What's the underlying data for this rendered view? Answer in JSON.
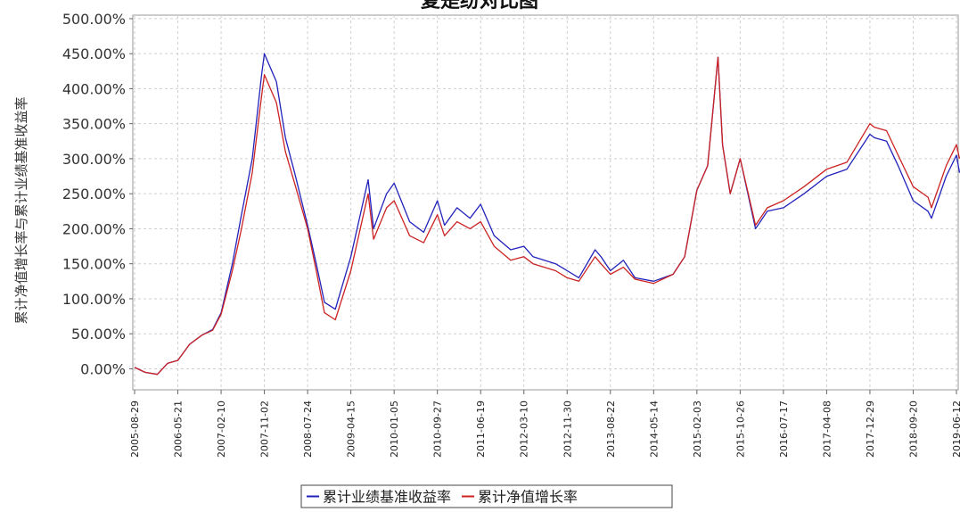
{
  "chart_data": {
    "type": "line",
    "title": "复是纷对比图",
    "xlabel": "",
    "ylabel": "累计净值增长率与累计业绩基准收益率",
    "ylim": [
      -30,
      505
    ],
    "y_ticks": [
      0,
      50,
      100,
      150,
      200,
      250,
      300,
      350,
      400,
      450,
      500
    ],
    "y_tick_labels": [
      "0.00%",
      "50.00%",
      "100.00%",
      "150.00%",
      "200.00%",
      "250.00%",
      "300.00%",
      "350.00%",
      "400.00%",
      "450.00%",
      "500.00%"
    ],
    "x_tick_labels": [
      "2005-08-29",
      "2006-05-21",
      "2007-02-10",
      "2007-11-02",
      "2008-07-24",
      "2009-04-15",
      "2010-01-05",
      "2010-09-27",
      "2011-06-19",
      "2012-03-10",
      "2012-11-30",
      "2013-08-22",
      "2014-05-14",
      "2015-02-03",
      "2015-10-26",
      "2016-07-17",
      "2017-04-08",
      "2017-12-29",
      "2018-09-20",
      "2019-06-12"
    ],
    "grid": true,
    "legend_position": "bottom-center",
    "series": [
      {
        "name": "累计业绩基准收益率",
        "color": "#2222bb",
        "x": [
          "2005-08-29",
          "2005-11-01",
          "2006-01-15",
          "2006-03-20",
          "2006-05-21",
          "2006-08-01",
          "2006-10-15",
          "2006-12-20",
          "2007-02-10",
          "2007-04-20",
          "2007-06-15",
          "2007-08-20",
          "2007-10-16",
          "2007-11-02",
          "2008-01-15",
          "2008-03-10",
          "2008-05-05",
          "2008-07-24",
          "2008-09-15",
          "2008-11-04",
          "2009-01-10",
          "2009-04-15",
          "2009-07-30",
          "2009-09-01",
          "2009-11-20",
          "2010-01-05",
          "2010-04-10",
          "2010-07-05",
          "2010-09-27",
          "2010-11-10",
          "2011-01-25",
          "2011-04-15",
          "2011-06-19",
          "2011-09-10",
          "2011-12-20",
          "2012-03-10",
          "2012-05-05",
          "2012-09-20",
          "2012-11-30",
          "2013-02-10",
          "2013-05-20",
          "2013-06-25",
          "2013-08-22",
          "2013-11-10",
          "2014-01-20",
          "2014-05-14",
          "2014-09-10",
          "2014-11-20",
          "2015-02-03",
          "2015-04-10",
          "2015-06-12",
          "2015-07-10",
          "2015-08-26",
          "2015-10-26",
          "2016-01-28",
          "2016-04-10",
          "2016-07-17",
          "2016-11-20",
          "2017-04-08",
          "2017-08-10",
          "2017-12-29",
          "2018-01-25",
          "2018-04-10",
          "2018-06-20",
          "2018-09-20",
          "2018-12-20",
          "2019-01-10",
          "2019-04-10",
          "2019-06-12",
          "2019-07-01"
        ],
        "values": [
          2,
          -5,
          -8,
          8,
          12,
          35,
          48,
          56,
          80,
          150,
          220,
          300,
          420,
          450,
          410,
          330,
          280,
          205,
          150,
          95,
          85,
          160,
          270,
          200,
          250,
          265,
          210,
          195,
          240,
          205,
          230,
          215,
          235,
          190,
          170,
          175,
          160,
          150,
          140,
          130,
          170,
          160,
          140,
          155,
          130,
          125,
          135,
          160,
          255,
          290,
          445,
          320,
          250,
          300,
          200,
          225,
          230,
          250,
          275,
          285,
          335,
          330,
          325,
          290,
          240,
          225,
          215,
          275,
          305,
          280
        ]
      },
      {
        "name": "累计净值增长率",
        "color": "#cc2222",
        "x": [
          "2005-08-29",
          "2005-11-01",
          "2006-01-15",
          "2006-03-20",
          "2006-05-21",
          "2006-08-01",
          "2006-10-15",
          "2006-12-20",
          "2007-02-10",
          "2007-04-20",
          "2007-06-15",
          "2007-08-20",
          "2007-10-16",
          "2007-11-02",
          "2008-01-15",
          "2008-03-10",
          "2008-05-05",
          "2008-07-24",
          "2008-09-15",
          "2008-11-04",
          "2009-01-10",
          "2009-04-15",
          "2009-07-30",
          "2009-09-01",
          "2009-11-20",
          "2010-01-05",
          "2010-04-10",
          "2010-07-05",
          "2010-09-27",
          "2010-11-10",
          "2011-01-25",
          "2011-04-15",
          "2011-06-19",
          "2011-09-10",
          "2011-12-20",
          "2012-03-10",
          "2012-05-05",
          "2012-09-20",
          "2012-11-30",
          "2013-02-10",
          "2013-05-20",
          "2013-06-25",
          "2013-08-22",
          "2013-11-10",
          "2014-01-20",
          "2014-05-14",
          "2014-09-10",
          "2014-11-20",
          "2015-02-03",
          "2015-04-10",
          "2015-06-12",
          "2015-07-10",
          "2015-08-26",
          "2015-10-26",
          "2016-01-28",
          "2016-04-10",
          "2016-07-17",
          "2016-11-20",
          "2017-04-08",
          "2017-08-10",
          "2017-12-29",
          "2018-01-25",
          "2018-04-10",
          "2018-06-20",
          "2018-09-20",
          "2018-12-20",
          "2019-01-10",
          "2019-04-10",
          "2019-06-12",
          "2019-07-01"
        ],
        "values": [
          2,
          -5,
          -8,
          8,
          12,
          35,
          48,
          55,
          78,
          140,
          200,
          280,
          390,
          420,
          380,
          310,
          265,
          200,
          140,
          80,
          70,
          140,
          250,
          185,
          230,
          240,
          190,
          180,
          220,
          190,
          210,
          200,
          210,
          175,
          155,
          160,
          150,
          140,
          130,
          125,
          160,
          150,
          135,
          145,
          128,
          122,
          135,
          160,
          255,
          290,
          445,
          320,
          250,
          300,
          205,
          230,
          240,
          260,
          285,
          295,
          350,
          345,
          340,
          305,
          260,
          245,
          230,
          290,
          320,
          300
        ]
      }
    ]
  }
}
